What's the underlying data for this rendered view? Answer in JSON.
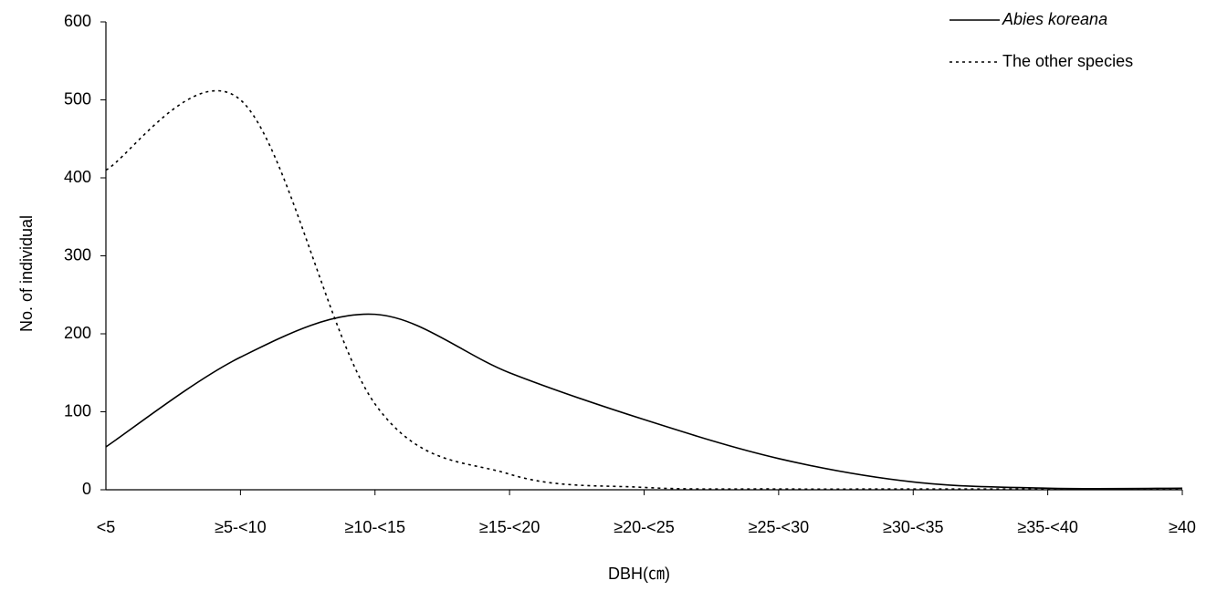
{
  "chart_data": {
    "type": "line",
    "x_label": "DBH(㎝)",
    "y_label": "No. of individual",
    "categories": [
      "<5",
      "≥5-<10",
      "≥10-<15",
      "≥15-<20",
      "≥20-<25",
      "≥25-<30",
      "≥30-<35",
      "≥35-<40",
      "≥40"
    ],
    "series": [
      {
        "name": "Abies koreana",
        "color": "#000000",
        "line_style": "solid",
        "italic": true,
        "values": [
          55,
          170,
          225,
          150,
          90,
          40,
          10,
          2,
          2
        ]
      },
      {
        "name": "The other species",
        "color": "#000000",
        "line_style": "dotted",
        "italic": false,
        "values": [
          410,
          500,
          110,
          20,
          3,
          1,
          1,
          1,
          1
        ]
      }
    ],
    "ylim": [
      0,
      600
    ],
    "yticks": [
      0,
      100,
      200,
      300,
      400,
      500,
      600
    ],
    "grid": false,
    "smooth": true,
    "legend": "top-right"
  }
}
